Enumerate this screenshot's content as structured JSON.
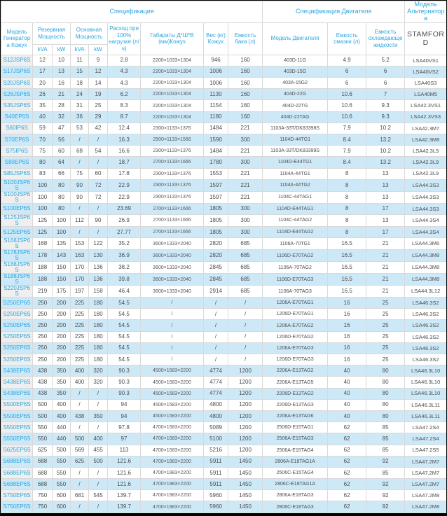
{
  "header": {
    "spec_group": "Спецификация",
    "engine_spec_group": "Спецификация Двигателя",
    "alternator_group": "Модель Альтернатора",
    "model_col": "Модель Генератора Кожух",
    "standby_power": "Резервная Мощность",
    "prime_power": "Основная Мощность",
    "kva1": "kVA",
    "kw1": "kW",
    "kva2": "kVA",
    "kw2": "kW",
    "fuel_consumption": "Расход при 100% нагрузке (л/ч)",
    "dimensions": "Габариты Д*Ш*В (мм)Кожух",
    "weight": "Вес (кг) Кожух",
    "fuel_tank": "Емкость бака (л)",
    "engine_model": "Модель Двигателя",
    "oil_capacity": "Емкость смазки (л)",
    "coolant_capacity": "Емкость охлаждающе жидкости",
    "alternator_brand": "STAMFORD"
  },
  "colors": {
    "accent_blue": "#2AA7DF",
    "alt_row_blue": "#CDE9F8",
    "model_cell_gray": "#EFEFEF",
    "text_gray": "#4D4D4D",
    "grid_line": "#D9D9D9",
    "outer_border": "#000000"
  },
  "rows": [
    [
      "S12JSP6S",
      "12",
      "10",
      "11",
      "9",
      "2.8",
      "2200×1033×1304",
      "946",
      "160",
      "403D-11G",
      "4.9",
      "5.2",
      "LSA40VS1"
    ],
    [
      "S17JSP6S",
      "17",
      "13",
      "15",
      "12",
      "4.3",
      "2200×1033×1304",
      "1006",
      "160",
      "403D-15G",
      "6",
      "6",
      "LSA40VS2"
    ],
    [
      "S20JSP6S",
      "20",
      "16",
      "18",
      "14",
      "4.3",
      "2200×1033×1304",
      "1006",
      "160",
      "403A-15G2",
      "6",
      "6",
      "LSA40S3"
    ],
    [
      "S26JSP6S",
      "26",
      "21",
      "24",
      "19",
      "6.2",
      "2200×1033×1304",
      "1130",
      "160",
      "404D-22G",
      "10.6",
      "7",
      "LSA40M5"
    ],
    [
      "S35JSP6S",
      "35",
      "28",
      "31",
      "25",
      "8.3",
      "2200×1033×1304",
      "1154",
      "160",
      "404D-22TG",
      "10.6",
      "9.3",
      "LSA42.3VS1"
    ],
    [
      "S40EP6S",
      "40",
      "32",
      "36",
      "29",
      "8.7",
      "2200×1033×1304",
      "1180",
      "160",
      "404D-22TAG",
      "10.6",
      "9.3",
      "LSA42.3VS3"
    ],
    [
      "S60IP6S",
      "59",
      "47",
      "53",
      "42",
      "12.4",
      "2300×1133×1376",
      "1484",
      "221",
      "1103A-33T/DK83398S",
      "7.9",
      "10.2",
      "LSA42.3M7"
    ],
    [
      "S70EP6S",
      "70",
      "56",
      "/",
      "/",
      "16.3",
      "2500×1133×1566",
      "1590",
      "300",
      "1104D-44TG1",
      "8.4",
      "13.2",
      "LSA42.3M8"
    ],
    [
      "S75IP6S",
      "75",
      "60",
      "68",
      "54",
      "16.6",
      "2300×1133×1376",
      "1484",
      "221",
      "1103A-33T/DK83399S",
      "7.9",
      "10.2",
      "LSA42.3L9"
    ],
    [
      "S80EP6S",
      "80",
      "64",
      "/",
      "/",
      "18.7",
      "2700×1133×1666",
      "1780",
      "300",
      "1104D-E44TG1",
      "8.4",
      "13.2",
      "LSA42.3L9"
    ],
    [
      "S85JSP6S",
      "83",
      "66",
      "75",
      "60",
      "17.8",
      "2300×1133×1376",
      "1553",
      "221",
      "1104A-44TG1",
      "8",
      "13",
      "LSA42.3L9"
    ],
    [
      "S100JSP6S",
      "100",
      "80",
      "90",
      "72",
      "22.9",
      "2300×1133×1376",
      "1597",
      "221",
      "1104A-44TG2",
      "8",
      "13",
      "LSA44.3S3"
    ],
    [
      "S100JSP6S",
      "100",
      "80",
      "90",
      "72",
      "22.9",
      "2300×1133×1376",
      "1597",
      "221",
      "1104C-44TAG1",
      "8",
      "13",
      "LSA44.3S3"
    ],
    [
      "S100EP6S",
      "100",
      "80",
      "/",
      "/",
      "23.69",
      "2700×1133×1666",
      "1805",
      "300",
      "1104D-E44TAG1",
      "8",
      "17",
      "LSA44.3S3"
    ],
    [
      "S125JSP6S",
      "125",
      "100",
      "112",
      "90",
      "26.9",
      "2700×1133×1666",
      "1805",
      "300",
      "1104C-44TAG2",
      "8",
      "13",
      "LSA44.3S4"
    ],
    [
      "S125EP6S",
      "125",
      "100",
      "/",
      "/",
      "27.77",
      "2700×1133×1666",
      "1805",
      "300",
      "1104D-E44TAG2",
      "8",
      "17",
      "LSA44.3S4"
    ],
    [
      "S168JSP6S",
      "168",
      "135",
      "153",
      "122",
      "35.2",
      "3600×1333×2040",
      "2820",
      "685",
      "1106A-70TG1",
      "16.5",
      "21",
      "LSA44.3M6"
    ],
    [
      "S178JSP6S",
      "178",
      "143",
      "163",
      "130",
      "36.9",
      "3600×1333×2040",
      "2820",
      "685",
      "1106D-E70TAG2",
      "16.5",
      "21",
      "LSA44.3M8"
    ],
    [
      "S188JSP6S",
      "188",
      "150",
      "170",
      "136",
      "38.2",
      "3600×1333×2040",
      "2845",
      "685",
      "1106A-70TAG2",
      "16.5",
      "21",
      "LSA44.3M8"
    ],
    [
      "S188JSP6S",
      "188",
      "150",
      "170",
      "136",
      "39.8",
      "3600×1333×2040",
      "2845",
      "685",
      "1106D-E70TAG3",
      "16.5",
      "21",
      "LSA44.3M8"
    ],
    [
      "S220JSP6S",
      "219",
      "175",
      "197",
      "158",
      "46.4",
      "3600×1333×2040",
      "2914",
      "685",
      "1106A-70TAG3",
      "16.5",
      "21",
      "LSA44.3L12"
    ],
    [
      "S250EP6S",
      "250",
      "200",
      "225",
      "180",
      "54.5",
      "/",
      "/",
      "/",
      "1206A-E70TAG1",
      "16",
      "25",
      "LSA46.3S2"
    ],
    [
      "S250EP6S",
      "250",
      "200",
      "225",
      "180",
      "54.5",
      "/",
      "/",
      "/",
      "1206D-E70TAG1",
      "16",
      "25",
      "LSA46.3S2"
    ],
    [
      "S250EP6S",
      "250",
      "200",
      "225",
      "180",
      "54.5",
      "/",
      "/",
      "/",
      "1206A-E70TAG2",
      "16",
      "25",
      "LSA46.3S2"
    ],
    [
      "S250EP6S",
      "250",
      "200",
      "225",
      "180",
      "54.5",
      "/",
      "/",
      "/",
      "1206D-E70TAG2",
      "16",
      "25",
      "LSA46.3S2"
    ],
    [
      "S250EP6S",
      "250",
      "200",
      "225",
      "180",
      "54.5",
      "/",
      "/",
      "/",
      "1206A-E70TAG3",
      "16",
      "25",
      "LSA46.3S2"
    ],
    [
      "S250EP6S",
      "250",
      "200",
      "225",
      "180",
      "54.5",
      "/",
      "/",
      "/",
      "1206D-E70TAG3",
      "16",
      "25",
      "LSA46.3S2"
    ],
    [
      "S438EP6S",
      "438",
      "350",
      "400",
      "320",
      "90.3",
      "4500×1583×2200",
      "4774",
      "1200",
      "2206A-E13TAG2",
      "40",
      "80",
      "LSA46.3L10"
    ],
    [
      "S438EP6S",
      "438",
      "350",
      "400",
      "320",
      "90.3",
      "4500×1583×2200",
      "4774",
      "1200",
      "2206A-E13TAG5",
      "40",
      "80",
      "LSA46.3L10"
    ],
    [
      "S438EP6S",
      "438",
      "350",
      "/",
      "/",
      "90.3",
      "4500×1583×2200",
      "4774",
      "1200",
      "2206D-E13TAG2",
      "40",
      "80",
      "LSA46.3L10"
    ],
    [
      "S500EP6S",
      "500",
      "400",
      "/",
      "/",
      "94",
      "4500×1583×2200",
      "4800",
      "1200",
      "2206D-E13TAG3",
      "40",
      "80",
      "LSA46.3L11"
    ],
    [
      "S500EP6S",
      "500",
      "400",
      "438",
      "350",
      "94",
      "4500×1583×2200",
      "4800",
      "1200",
      "2206A-E13TAG6",
      "40",
      "80",
      "LSA46.3L11"
    ],
    [
      "S550EP6S",
      "550",
      "440",
      "/",
      "/",
      "97.8",
      "4700×1583×2200",
      "5089",
      "1200",
      "2506D-E15TAG1",
      "62",
      "85",
      "LSA47.2S4"
    ],
    [
      "S550EP6S",
      "550",
      "440",
      "500",
      "400",
      "97",
      "4700×1583×2200",
      "5100",
      "1200",
      "2506A-E15TAG3",
      "62",
      "85",
      "LSA47.2S4"
    ],
    [
      "S625EP6S",
      "625",
      "500",
      "569",
      "455",
      "113",
      "4700×1583×2200",
      "5216",
      "1200",
      "2506A-E15TAG4",
      "62",
      "85",
      "LSA47.2S5"
    ],
    [
      "S688EP6S",
      "688",
      "550",
      "625",
      "500",
      "121.6",
      "4700×1983×2200",
      "5911",
      "1450",
      "2806A-E18TAG1A",
      "62",
      "92",
      "LSA47.2M7"
    ],
    [
      "S688EP6S",
      "688",
      "550",
      "/",
      "/",
      "121.6",
      "4700×1983×2200",
      "5911",
      "1450",
      "2506C-E15TAG4",
      "62",
      "85",
      "LSA47.2M7"
    ],
    [
      "S688EP6S",
      "688",
      "550",
      "/",
      "/",
      "121.6",
      "4700×1983×2200",
      "5911",
      "1450",
      "2806C-E18TAG1A",
      "62",
      "92",
      "LSA47.2M7"
    ],
    [
      "S750EP6S",
      "750",
      "600",
      "681",
      "545",
      "139.7",
      "4700×1983×2200",
      "5960",
      "1450",
      "2806A-E18TAG3",
      "62",
      "92",
      "LSA47.2M8"
    ],
    [
      "S750EP6S",
      "750",
      "600",
      "/",
      "/",
      "139.7",
      "4700×1983×2200",
      "5960",
      "1450",
      "2806C-E18TAG3",
      "62",
      "92",
      "LSA47.2M8"
    ]
  ]
}
